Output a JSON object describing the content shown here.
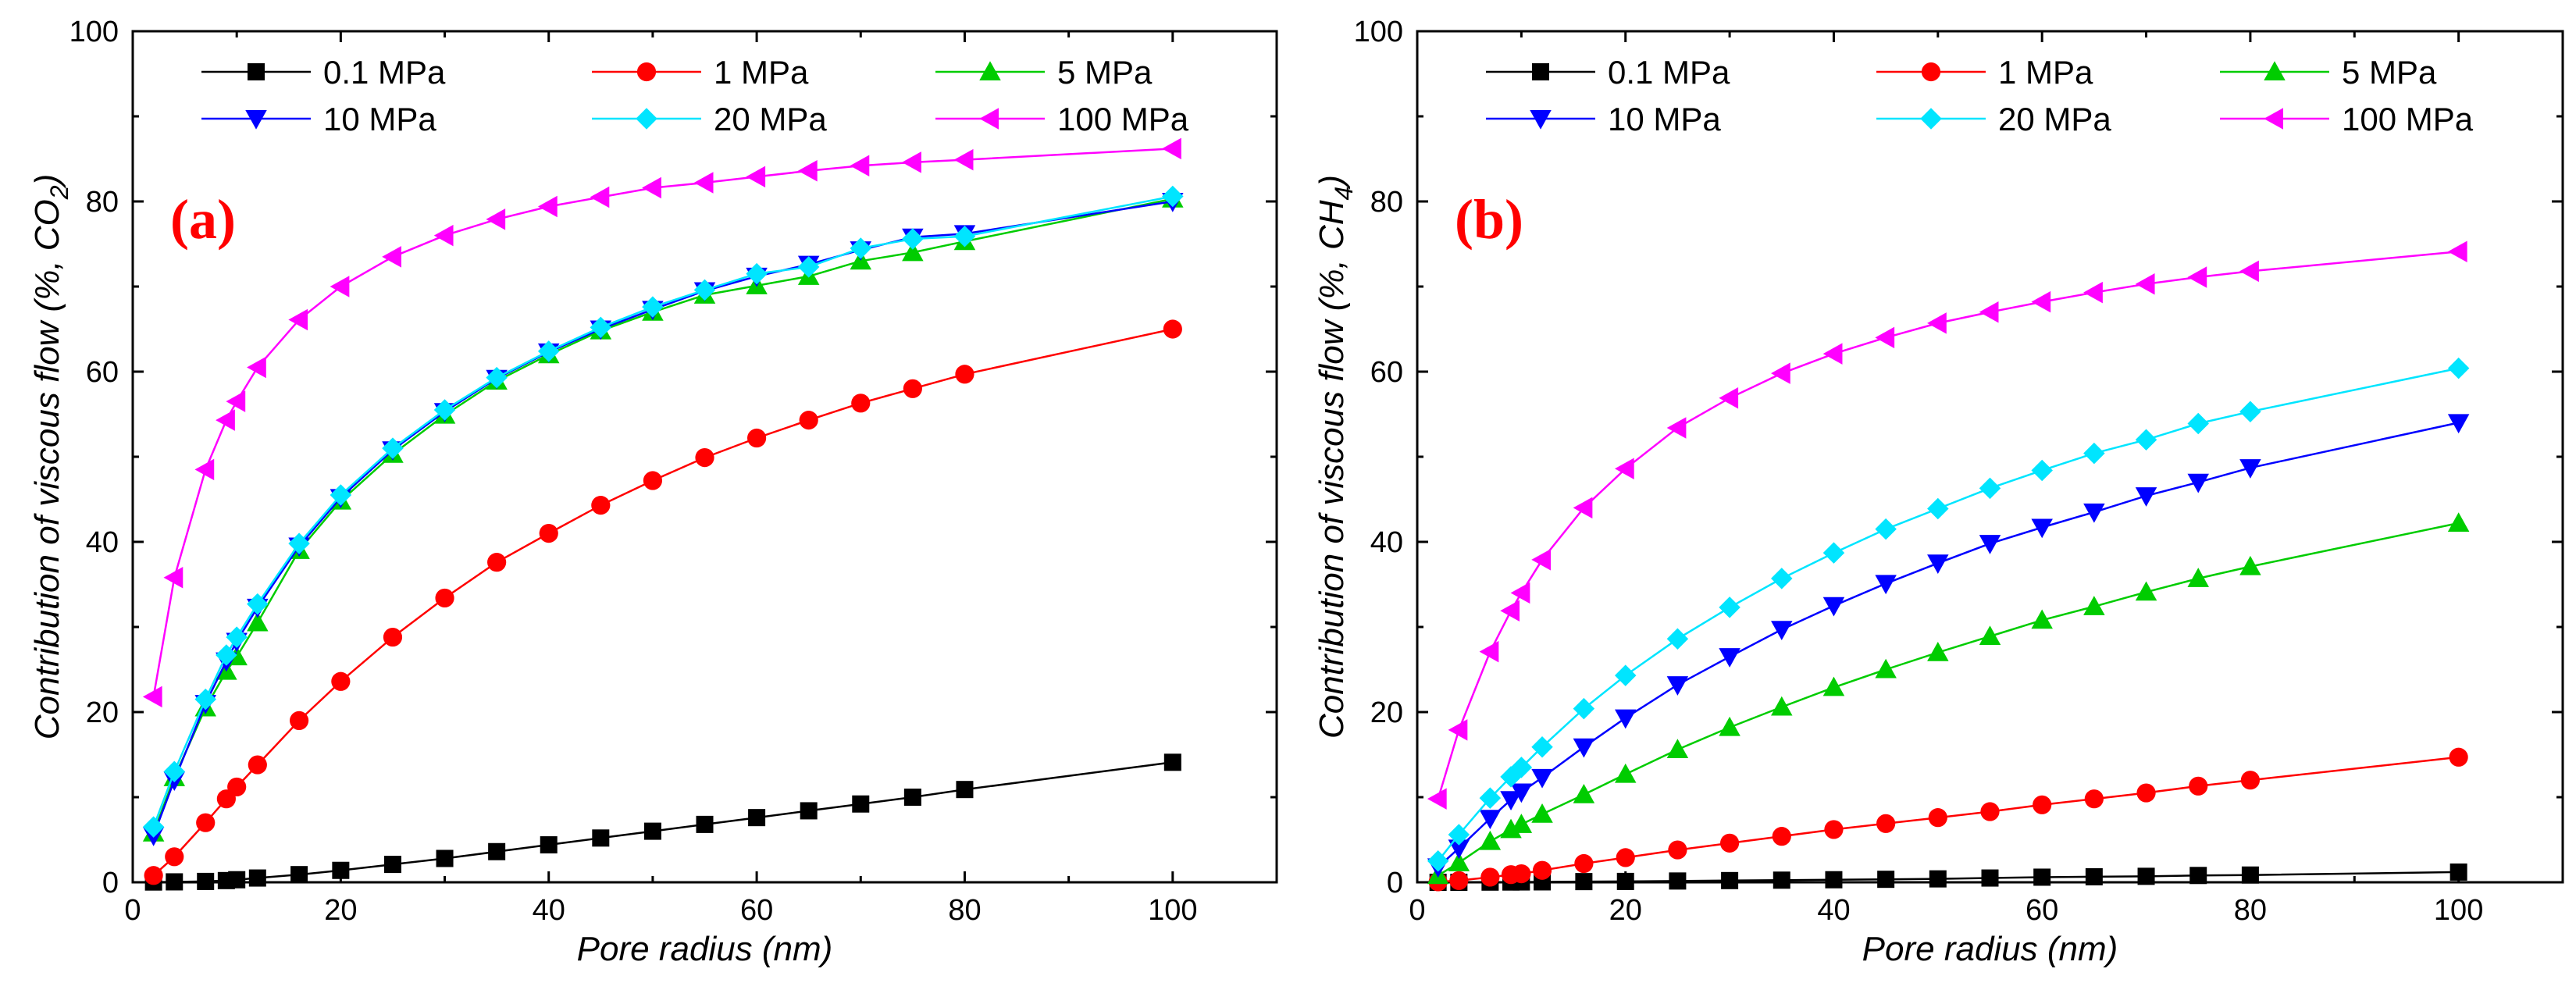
{
  "chart_data": [
    {
      "type": "line",
      "panel_label": "(a)",
      "xlabel": "Pore radius (nm)",
      "ylabel_prefix": "Contribution of viscous flow (%, CO",
      "ylabel_sub": "2",
      "ylabel_suffix": ")",
      "xlim": [
        0,
        110
      ],
      "ylim": [
        0,
        100
      ],
      "xticks": [
        "0",
        "20",
        "40",
        "60",
        "80",
        "100"
      ],
      "yticks": [
        "0",
        "20",
        "40",
        "60",
        "80",
        "100"
      ],
      "x": [
        2,
        4,
        7,
        9,
        10,
        12,
        16,
        20,
        25,
        30,
        35,
        40,
        45,
        50,
        55,
        60,
        65,
        70,
        75,
        80,
        100
      ],
      "series": [
        {
          "name": "0.1 MPa",
          "color": "#000000",
          "marker": "square",
          "values": [
            0.03,
            0.05,
            0.1,
            0.2,
            0.3,
            0.5,
            0.9,
            1.4,
            2.1,
            2.8,
            3.6,
            4.4,
            5.2,
            6.0,
            6.8,
            7.6,
            8.4,
            9.2,
            10.0,
            10.9,
            14.1
          ]
        },
        {
          "name": "1 MPa",
          "color": "#ff0000",
          "marker": "circle",
          "values": [
            0.8,
            3.0,
            7.0,
            9.8,
            11.2,
            13.8,
            19.0,
            23.6,
            28.8,
            33.4,
            37.6,
            41.0,
            44.3,
            47.2,
            49.9,
            52.2,
            54.3,
            56.3,
            58.0,
            59.7,
            65.0
          ]
        },
        {
          "name": "5 MPa",
          "color": "#00cc00",
          "marker": "triangle-up",
          "values": [
            5.8,
            12.3,
            20.5,
            24.8,
            26.5,
            30.5,
            39.0,
            44.8,
            50.3,
            54.9,
            58.9,
            62.0,
            64.8,
            67.0,
            69.0,
            70.1,
            71.2,
            73.0,
            74.0,
            75.3,
            80.3
          ]
        },
        {
          "name": "10 MPa",
          "color": "#0000ff",
          "marker": "triangle-down",
          "values": [
            5.5,
            12.0,
            21.0,
            26.0,
            28.3,
            32.3,
            39.5,
            45.2,
            50.8,
            55.3,
            59.2,
            62.3,
            65.0,
            67.3,
            69.5,
            71.2,
            72.6,
            74.3,
            75.8,
            76.2,
            80.0
          ]
        },
        {
          "name": "20 MPa",
          "color": "#00e5ff",
          "marker": "diamond",
          "values": [
            6.5,
            13.0,
            21.5,
            26.7,
            28.8,
            32.7,
            39.8,
            45.5,
            51.0,
            55.5,
            59.3,
            62.4,
            65.2,
            67.6,
            69.6,
            71.5,
            72.3,
            74.5,
            75.6,
            75.9,
            80.6
          ]
        },
        {
          "name": "100 MPa",
          "color": "#ff00ff",
          "marker": "triangle-left",
          "values": [
            21.8,
            35.8,
            48.5,
            54.3,
            56.5,
            60.5,
            66.1,
            70.0,
            73.5,
            76.0,
            77.9,
            79.4,
            80.5,
            81.6,
            82.2,
            82.9,
            83.6,
            84.2,
            84.6,
            84.9,
            86.2
          ]
        }
      ]
    },
    {
      "type": "line",
      "panel_label": "(b)",
      "xlabel": "Pore radius (nm)",
      "ylabel_prefix": "Contribution of viscous flow (%, CH",
      "ylabel_sub": "4",
      "ylabel_suffix": ")",
      "xlim": [
        0,
        110
      ],
      "ylim": [
        0,
        100
      ],
      "xticks": [
        "0",
        "20",
        "40",
        "60",
        "80",
        "100"
      ],
      "yticks": [
        "0",
        "20",
        "40",
        "60",
        "80",
        "100"
      ],
      "x": [
        2,
        4,
        7,
        9,
        10,
        12,
        16,
        20,
        25,
        30,
        35,
        40,
        45,
        50,
        55,
        60,
        65,
        70,
        75,
        80,
        100
      ],
      "series": [
        {
          "name": "0.1 MPa",
          "color": "#000000",
          "marker": "square",
          "values": [
            0.0,
            0.0,
            0.02,
            0.03,
            0.04,
            0.05,
            0.08,
            0.1,
            0.15,
            0.2,
            0.25,
            0.3,
            0.35,
            0.4,
            0.5,
            0.6,
            0.65,
            0.7,
            0.8,
            0.85,
            1.2
          ]
        },
        {
          "name": "1 MPa",
          "color": "#ff0000",
          "marker": "circle",
          "values": [
            0.05,
            0.2,
            0.6,
            0.9,
            1.0,
            1.4,
            2.2,
            2.9,
            3.8,
            4.6,
            5.4,
            6.2,
            6.9,
            7.6,
            8.3,
            9.1,
            9.8,
            10.5,
            11.3,
            12.0,
            14.7
          ]
        },
        {
          "name": "5 MPa",
          "color": "#00cc00",
          "marker": "triangle-up",
          "values": [
            0.8,
            2.3,
            4.8,
            6.2,
            6.8,
            8.0,
            10.3,
            12.7,
            15.6,
            18.2,
            20.6,
            22.9,
            25.0,
            27.0,
            28.9,
            30.8,
            32.4,
            34.1,
            35.7,
            37.1,
            42.2
          ]
        },
        {
          "name": "10 MPa",
          "color": "#0000ff",
          "marker": "triangle-down",
          "values": [
            1.8,
            4.0,
            7.5,
            9.7,
            10.6,
            12.3,
            15.9,
            19.3,
            23.2,
            26.5,
            29.7,
            32.5,
            35.1,
            37.5,
            39.8,
            41.7,
            43.5,
            45.4,
            47.0,
            48.7,
            54.0
          ]
        },
        {
          "name": "20 MPa",
          "color": "#00e5ff",
          "marker": "diamond",
          "values": [
            2.5,
            5.6,
            9.9,
            12.4,
            13.5,
            15.9,
            20.4,
            24.3,
            28.6,
            32.3,
            35.7,
            38.7,
            41.5,
            43.9,
            46.3,
            48.4,
            50.4,
            52.0,
            53.9,
            55.3,
            60.4
          ]
        },
        {
          "name": "100 MPa",
          "color": "#ff00ff",
          "marker": "triangle-left",
          "values": [
            9.8,
            17.9,
            27.1,
            31.9,
            34.0,
            37.9,
            44.0,
            48.6,
            53.4,
            56.9,
            59.8,
            62.1,
            64.0,
            65.7,
            67.0,
            68.2,
            69.3,
            70.3,
            71.1,
            71.8,
            74.1
          ]
        }
      ]
    }
  ]
}
